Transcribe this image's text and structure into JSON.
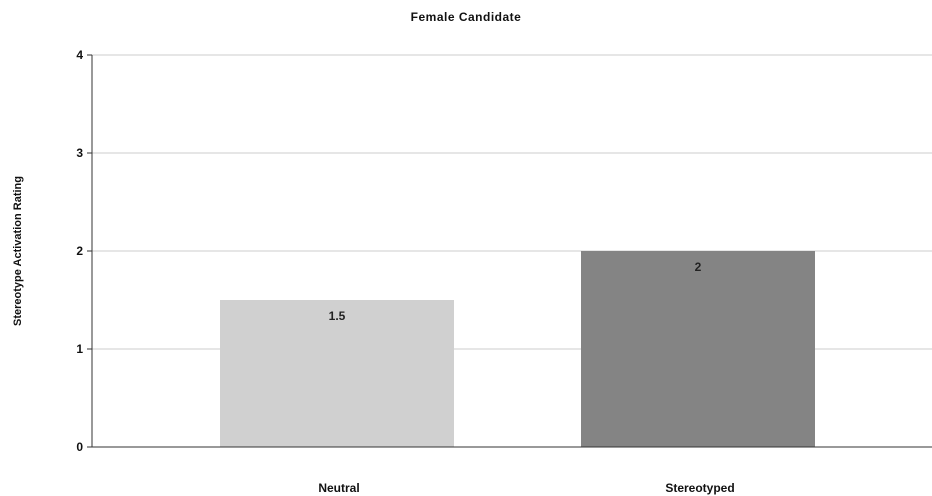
{
  "chart_data": {
    "type": "bar",
    "title": "Female Candidate",
    "xlabel": "",
    "ylabel": "Stereotype Activation Rating",
    "categories": [
      "Neutral",
      "Stereotyped"
    ],
    "values": [
      1.5,
      2
    ],
    "data_labels": [
      "1.5",
      "2"
    ],
    "ylim": [
      0,
      4
    ],
    "yticks": [
      0,
      1,
      2,
      3,
      4
    ],
    "ytick_labels": [
      "0",
      "1",
      "2",
      "3",
      "4"
    ],
    "grid": true,
    "legend": "none",
    "bar_colors": [
      "#d0d0d0",
      "#848484"
    ],
    "grid_color": "#cccccc",
    "axis_color": "#333333"
  }
}
